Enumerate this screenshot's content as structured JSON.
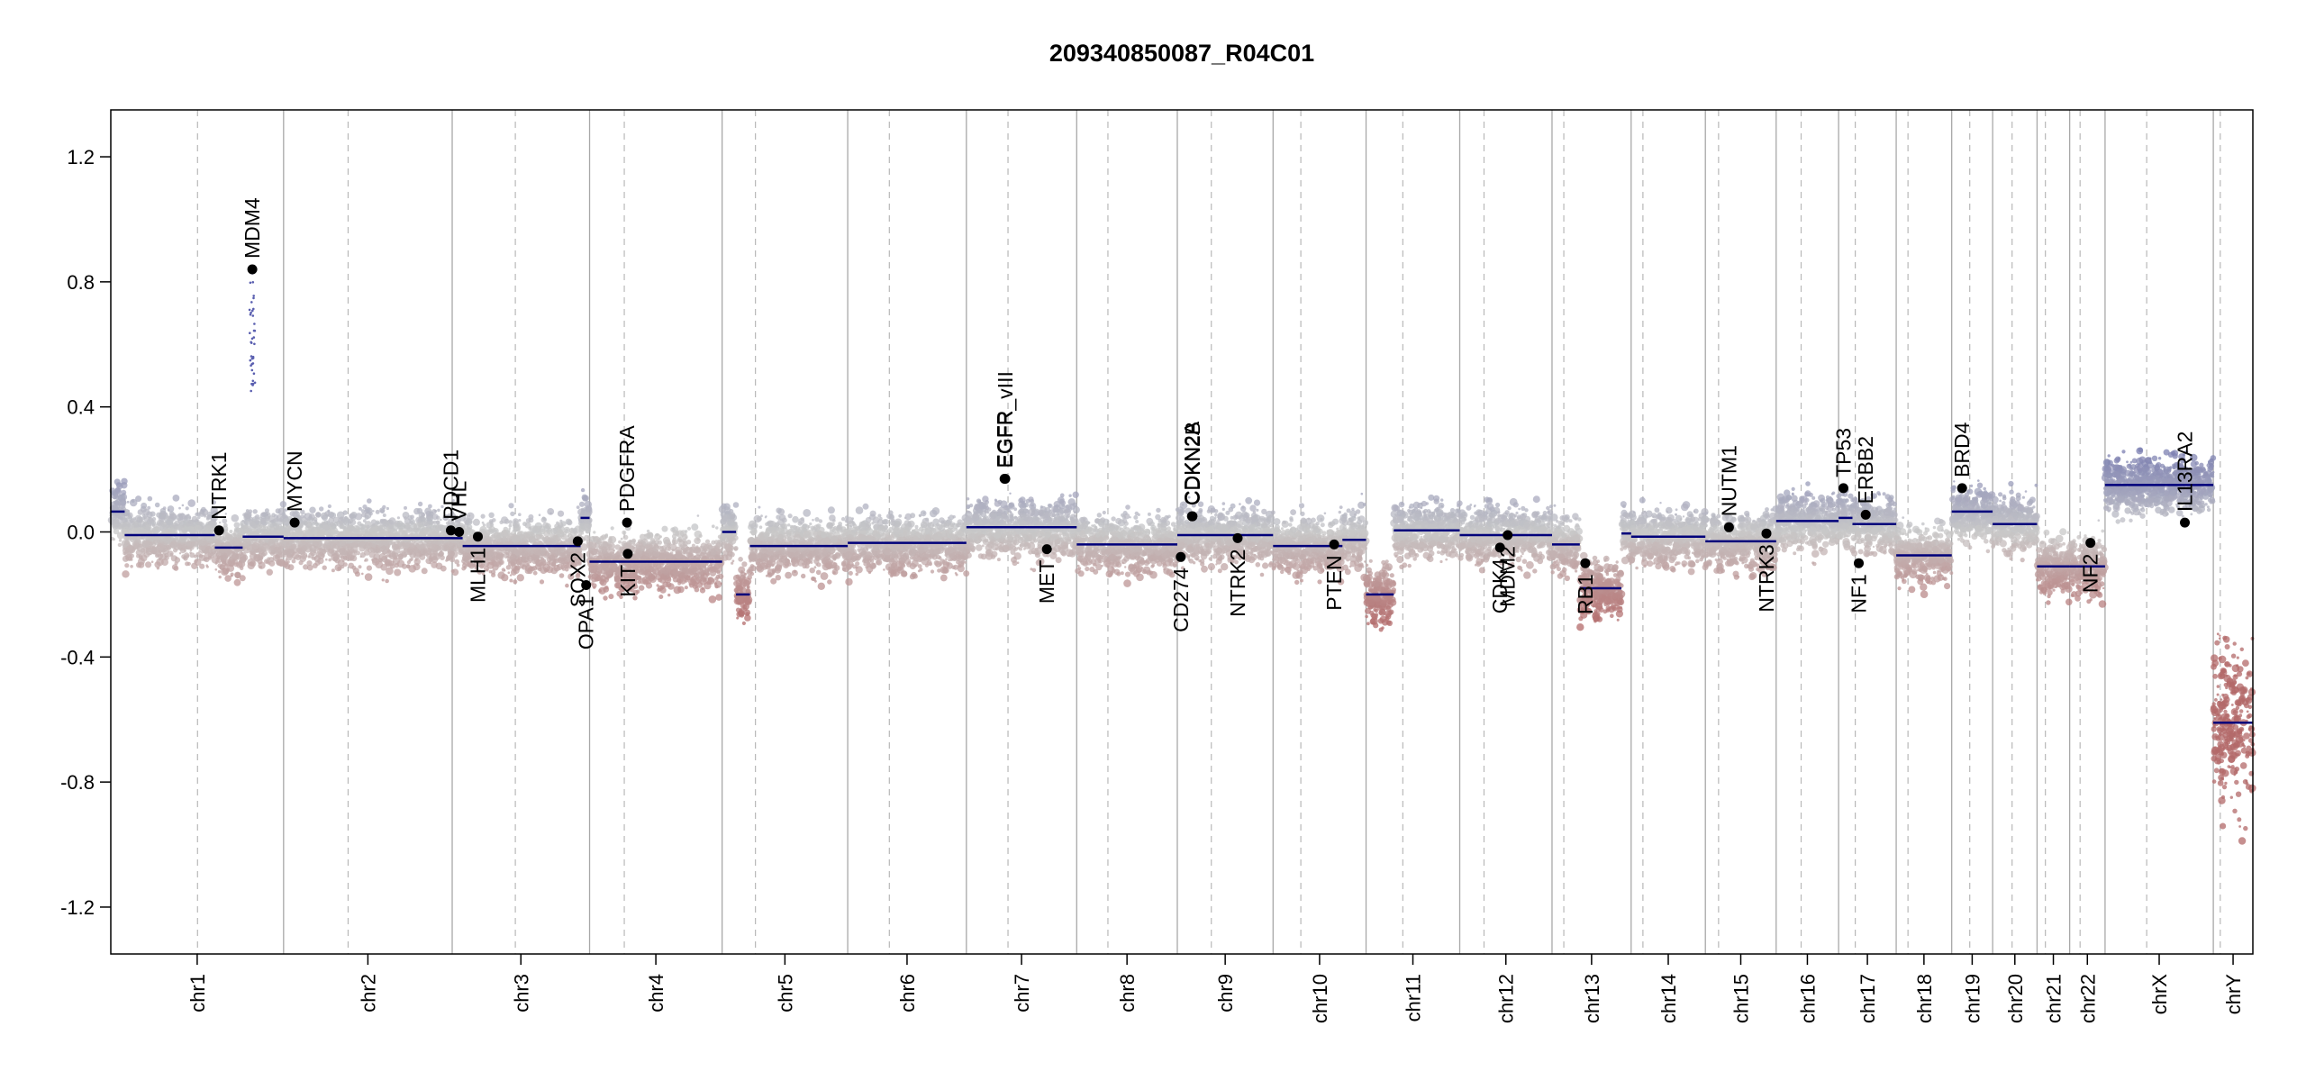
{
  "chart_data": {
    "type": "scatter",
    "title": "209340850087_R04C01",
    "xlabel": "",
    "ylabel": "",
    "ylim": [
      -1.35,
      1.35
    ],
    "yticks": [
      "-1.2",
      "-0.8",
      "-0.4",
      "0.0",
      "0.4",
      "0.8",
      "1.2"
    ],
    "colors": {
      "gain": "#6f73ad",
      "neutral": "#c8c8c8",
      "loss": "#b36a6a",
      "segment": "#00007a",
      "gene_point": "#000000"
    },
    "chromosomes": [
      {
        "name": "chr1",
        "size": 249,
        "centromere": 125
      },
      {
        "name": "chr2",
        "size": 243,
        "centromere": 93
      },
      {
        "name": "chr3",
        "size": 198,
        "centromere": 91
      },
      {
        "name": "chr4",
        "size": 191,
        "centromere": 50
      },
      {
        "name": "chr5",
        "size": 181,
        "centromere": 48
      },
      {
        "name": "chr6",
        "size": 171,
        "centromere": 60
      },
      {
        "name": "chr7",
        "size": 159,
        "centromere": 60
      },
      {
        "name": "chr8",
        "size": 145,
        "centromere": 45
      },
      {
        "name": "chr9",
        "size": 138,
        "centromere": 49
      },
      {
        "name": "chr10",
        "size": 134,
        "centromere": 40
      },
      {
        "name": "chr11",
        "size": 135,
        "centromere": 53
      },
      {
        "name": "chr12",
        "size": 133,
        "centromere": 35
      },
      {
        "name": "chr13",
        "size": 114,
        "centromere": 17
      },
      {
        "name": "chr14",
        "size": 107,
        "centromere": 17
      },
      {
        "name": "chr15",
        "size": 102,
        "centromere": 19
      },
      {
        "name": "chr16",
        "size": 90,
        "centromere": 36
      },
      {
        "name": "chr17",
        "size": 83,
        "centromere": 24
      },
      {
        "name": "chr18",
        "size": 80,
        "centromere": 17
      },
      {
        "name": "chr19",
        "size": 59,
        "centromere": 26
      },
      {
        "name": "chr20",
        "size": 64,
        "centromere": 28
      },
      {
        "name": "chr21",
        "size": 47,
        "centromere": 12
      },
      {
        "name": "chr22",
        "size": 51,
        "centromere": 15
      },
      {
        "name": "chrX",
        "size": 156,
        "centromere": 60
      },
      {
        "name": "chrY",
        "size": 57,
        "centromere": 10
      }
    ],
    "segments": [
      {
        "chr": "chr1",
        "start": 0,
        "end": 20,
        "value": 0.065
      },
      {
        "chr": "chr1",
        "start": 20,
        "end": 150,
        "value": -0.01
      },
      {
        "chr": "chr1",
        "start": 150,
        "end": 190,
        "value": -0.05
      },
      {
        "chr": "chr1",
        "start": 190,
        "end": 249,
        "value": -0.015
      },
      {
        "chr": "chr2",
        "start": 0,
        "end": 243,
        "value": -0.02
      },
      {
        "chr": "chr3",
        "start": 0,
        "end": 15,
        "value": -0.02
      },
      {
        "chr": "chr3",
        "start": 15,
        "end": 185,
        "value": -0.045
      },
      {
        "chr": "chr3",
        "start": 185,
        "end": 198,
        "value": 0.045
      },
      {
        "chr": "chr4",
        "start": 0,
        "end": 191,
        "value": -0.095
      },
      {
        "chr": "chr5",
        "start": 0,
        "end": 20,
        "value": 0.0
      },
      {
        "chr": "chr5",
        "start": 20,
        "end": 40,
        "value": -0.2
      },
      {
        "chr": "chr5",
        "start": 40,
        "end": 181,
        "value": -0.045
      },
      {
        "chr": "chr6",
        "start": 0,
        "end": 171,
        "value": -0.035
      },
      {
        "chr": "chr7",
        "start": 0,
        "end": 159,
        "value": 0.015
      },
      {
        "chr": "chr8",
        "start": 0,
        "end": 145,
        "value": -0.04
      },
      {
        "chr": "chr9",
        "start": 0,
        "end": 138,
        "value": -0.01
      },
      {
        "chr": "chr10",
        "start": 0,
        "end": 100,
        "value": -0.045
      },
      {
        "chr": "chr10",
        "start": 100,
        "end": 134,
        "value": -0.025
      },
      {
        "chr": "chr11",
        "start": 0,
        "end": 40,
        "value": -0.2
      },
      {
        "chr": "chr11",
        "start": 40,
        "end": 135,
        "value": 0.005
      },
      {
        "chr": "chr12",
        "start": 0,
        "end": 133,
        "value": -0.01
      },
      {
        "chr": "chr13",
        "start": 0,
        "end": 40,
        "value": -0.04
      },
      {
        "chr": "chr13",
        "start": 40,
        "end": 100,
        "value": -0.18
      },
      {
        "chr": "chr13",
        "start": 100,
        "end": 114,
        "value": -0.005
      },
      {
        "chr": "chr14",
        "start": 0,
        "end": 107,
        "value": -0.015
      },
      {
        "chr": "chr15",
        "start": 0,
        "end": 102,
        "value": -0.03
      },
      {
        "chr": "chr16",
        "start": 0,
        "end": 90,
        "value": 0.035
      },
      {
        "chr": "chr17",
        "start": 0,
        "end": 20,
        "value": 0.045
      },
      {
        "chr": "chr17",
        "start": 20,
        "end": 83,
        "value": 0.025
      },
      {
        "chr": "chr18",
        "start": 0,
        "end": 80,
        "value": -0.075
      },
      {
        "chr": "chr19",
        "start": 0,
        "end": 59,
        "value": 0.065
      },
      {
        "chr": "chr20",
        "start": 0,
        "end": 64,
        "value": 0.025
      },
      {
        "chr": "chr21",
        "start": 0,
        "end": 47,
        "value": -0.11
      },
      {
        "chr": "chr22",
        "start": 0,
        "end": 51,
        "value": -0.11
      },
      {
        "chr": "chrX",
        "start": 0,
        "end": 156,
        "value": 0.15
      },
      {
        "chr": "chrY",
        "start": 0,
        "end": 57,
        "value": -0.61
      }
    ],
    "genes": [
      {
        "name": "NTRK1",
        "chr": "chr1",
        "pos": 156,
        "value": 0.005,
        "label_side": "above"
      },
      {
        "name": "MDM4",
        "chr": "chr1",
        "pos": 204,
        "value": 0.84,
        "label_side": "above"
      },
      {
        "name": "MYCN",
        "chr": "chr2",
        "pos": 16,
        "value": 0.03,
        "label_side": "above"
      },
      {
        "name": "PDCD1",
        "chr": "chr2",
        "pos": 241,
        "value": 0.005,
        "label_side": "above"
      },
      {
        "name": "VHL",
        "chr": "chr3",
        "pos": 10,
        "value": 0.0,
        "label_side": "above"
      },
      {
        "name": "MLH1",
        "chr": "chr3",
        "pos": 37,
        "value": -0.015,
        "label_side": "below"
      },
      {
        "name": "SOX2",
        "chr": "chr3",
        "pos": 181,
        "value": -0.03,
        "label_side": "below"
      },
      {
        "name": "OPA1",
        "chr": "chr3",
        "pos": 193,
        "value": -0.17,
        "label_side": "below"
      },
      {
        "name": "PDGFRA",
        "chr": "chr4",
        "pos": 54,
        "value": 0.03,
        "label_side": "above"
      },
      {
        "name": "KIT",
        "chr": "chr4",
        "pos": 55,
        "value": -0.07,
        "label_side": "below"
      },
      {
        "name": "EGFR",
        "chr": "chr7",
        "pos": 55,
        "value": 0.17,
        "label_side": "above"
      },
      {
        "name": "EGFR_vIII",
        "chr": "chr7",
        "pos": 56,
        "value": 0.17,
        "label_side": "above"
      },
      {
        "name": "MET",
        "chr": "chr7",
        "pos": 116,
        "value": -0.055,
        "label_side": "below"
      },
      {
        "name": "CD274",
        "chr": "chr9",
        "pos": 5,
        "value": -0.08,
        "label_side": "below"
      },
      {
        "name": "CDKN2A",
        "chr": "chr9",
        "pos": 21,
        "value": 0.05,
        "label_side": "above"
      },
      {
        "name": "CDKN2B",
        "chr": "chr9",
        "pos": 22,
        "value": 0.05,
        "label_side": "above"
      },
      {
        "name": "NTRK2",
        "chr": "chr9",
        "pos": 87,
        "value": -0.02,
        "label_side": "below"
      },
      {
        "name": "PTEN",
        "chr": "chr10",
        "pos": 88,
        "value": -0.04,
        "label_side": "below"
      },
      {
        "name": "CDK4",
        "chr": "chr12",
        "pos": 58,
        "value": -0.05,
        "label_side": "below"
      },
      {
        "name": "MDM2",
        "chr": "chr12",
        "pos": 69,
        "value": -0.01,
        "label_side": "below"
      },
      {
        "name": "RB1",
        "chr": "chr13",
        "pos": 48,
        "value": -0.1,
        "label_side": "below"
      },
      {
        "name": "NUTM1",
        "chr": "chr15",
        "pos": 34,
        "value": 0.015,
        "label_side": "above"
      },
      {
        "name": "NTRK3",
        "chr": "chr15",
        "pos": 88,
        "value": -0.005,
        "label_side": "below"
      },
      {
        "name": "TP53",
        "chr": "chr17",
        "pos": 7,
        "value": 0.14,
        "label_side": "above"
      },
      {
        "name": "NF1",
        "chr": "chr17",
        "pos": 29,
        "value": -0.1,
        "label_side": "below"
      },
      {
        "name": "ERBB2",
        "chr": "chr17",
        "pos": 39,
        "value": 0.055,
        "label_side": "above"
      },
      {
        "name": "BRD4",
        "chr": "chr19",
        "pos": 15,
        "value": 0.14,
        "label_side": "above"
      },
      {
        "name": "NF2",
        "chr": "chr22",
        "pos": 30,
        "value": -0.035,
        "label_side": "below"
      },
      {
        "name": "IL13RA2",
        "chr": "chrX",
        "pos": 115,
        "value": 0.03,
        "label_side": "above"
      }
    ]
  }
}
